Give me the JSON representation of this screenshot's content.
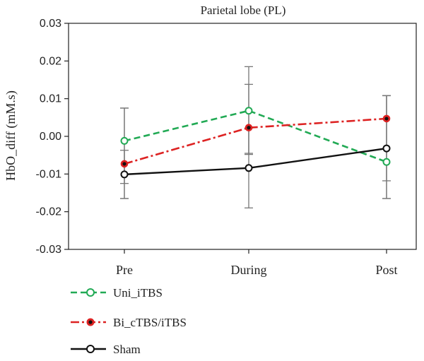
{
  "chart_data": {
    "type": "line",
    "title": "Parietal lobe (PL)",
    "xlabel": "",
    "ylabel": "HbO_diff (mM.s)",
    "categories": [
      "Pre",
      "During",
      "Post"
    ],
    "ylim": [
      -0.03,
      0.03
    ],
    "yticks": [
      -0.03,
      -0.02,
      -0.01,
      0.0,
      0.01,
      0.02,
      0.03
    ],
    "ytick_labels": [
      "-0.03",
      "-0.02",
      "-0.01",
      "0.00",
      "0.01",
      "0.02",
      "0.03"
    ],
    "grid": false,
    "legend_position": "bottom-left",
    "series": [
      {
        "name": "Uni_iTBS",
        "color": "#22aa55",
        "line_style": "dashed",
        "marker": "open-circle",
        "values": [
          -0.0012,
          0.0068,
          -0.0068
        ],
        "error_low": [
          -0.0125,
          -0.0048,
          -0.0165
        ],
        "error_high": [
          0.0075,
          0.0185,
          0.0108
        ]
      },
      {
        "name": "Bi_cTBS/iTBS",
        "color": "#dd2222",
        "line_style": "dashdot",
        "marker": "filled-circle",
        "values": [
          -0.0073,
          0.0023,
          0.0047
        ],
        "error_low": [
          -0.0165,
          -0.0045,
          -0.0118
        ],
        "error_high": [
          0.0075,
          0.0138,
          0.0108
        ]
      },
      {
        "name": "Sham",
        "color": "#111111",
        "line_style": "solid",
        "marker": "open-circle",
        "values": [
          -0.0101,
          -0.0084,
          -0.0032
        ],
        "error_low": [
          -0.0165,
          -0.019,
          -0.0165
        ],
        "error_high": [
          -0.0037,
          0.0022,
          0.0108
        ]
      }
    ]
  }
}
